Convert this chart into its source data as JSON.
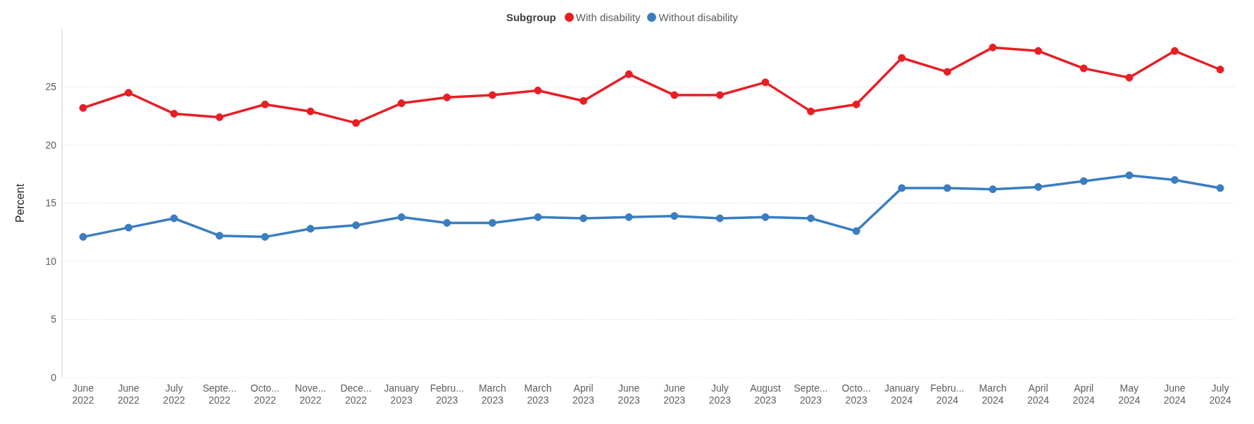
{
  "chart_data": {
    "type": "line",
    "ylabel": "Percent",
    "legend_title": "Subgroup",
    "legend": "top",
    "grid": "y",
    "marker": "circle",
    "line_style": "solid",
    "categories": [
      "June 2022",
      "June 2022",
      "July 2022",
      "Septe... 2022",
      "Octo... 2022",
      "Nove... 2022",
      "Dece... 2022",
      "January 2023",
      "Febru... 2023",
      "March 2023",
      "March 2023",
      "April 2023",
      "June 2023",
      "June 2023",
      "July 2023",
      "August 2023",
      "Septe... 2023",
      "Octo... 2023",
      "January 2024",
      "Febru... 2024",
      "March 2024",
      "April 2024",
      "April 2024",
      "May 2024",
      "June 2024",
      "July 2024"
    ],
    "ylim": [
      0,
      30
    ],
    "yticks": [
      0,
      5,
      10,
      15,
      20,
      25
    ],
    "series": [
      {
        "name": "With disability",
        "color": "#e81e25",
        "values": [
          23.2,
          24.5,
          22.7,
          22.4,
          23.5,
          22.9,
          21.9,
          23.6,
          24.1,
          24.3,
          24.7,
          23.8,
          26.1,
          24.3,
          24.3,
          25.4,
          22.9,
          23.5,
          27.5,
          26.3,
          28.4,
          28.1,
          26.6,
          25.8,
          28.1,
          26.5
        ]
      },
      {
        "name": "Without disability",
        "color": "#3a7dc0",
        "values": [
          12.1,
          12.9,
          13.7,
          12.2,
          12.1,
          12.8,
          13.1,
          13.8,
          13.3,
          13.3,
          13.8,
          13.7,
          13.8,
          13.9,
          13.7,
          13.8,
          13.7,
          12.6,
          16.3,
          16.3,
          16.2,
          16.4,
          16.9,
          17.4,
          17.0,
          16.3
        ]
      }
    ]
  }
}
